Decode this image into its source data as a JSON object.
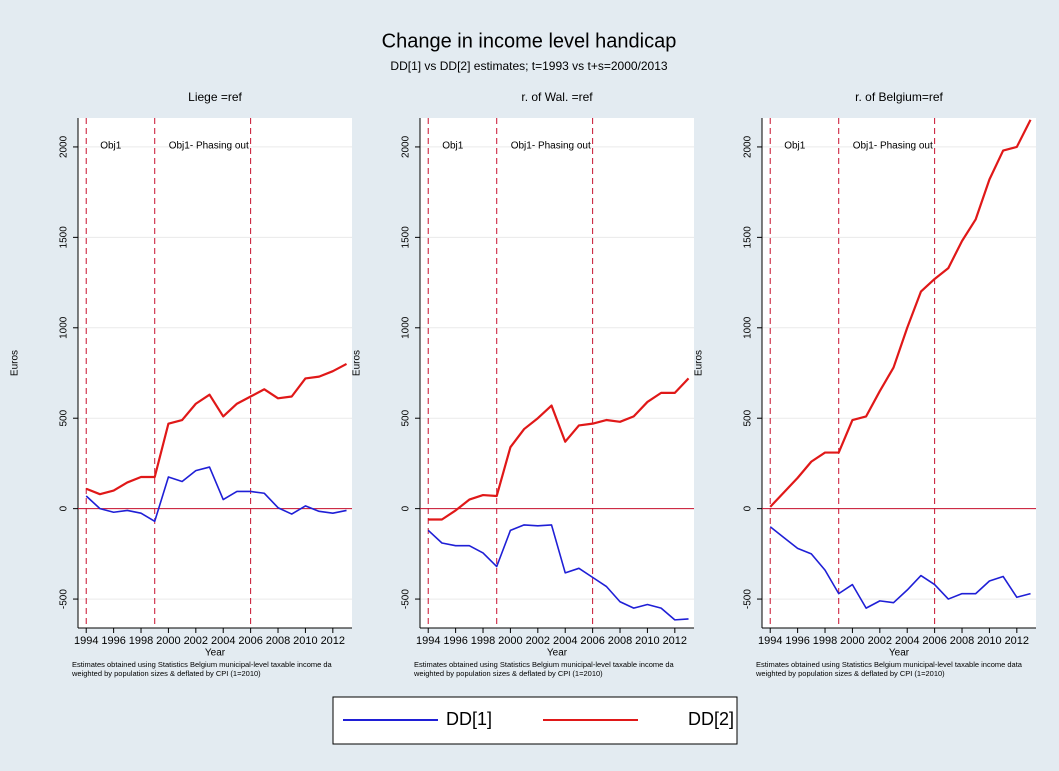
{
  "title": "Change in income level handicap",
  "subtitle": "DD[1] vs DD[2] estimates; t=1993 vs t+s=2000/2013",
  "chart_data": [
    {
      "type": "line",
      "title": "Liege =ref",
      "xlabel": "Year",
      "ylabel": "Euros",
      "notes": [
        "Estimates obtained using Statistics Belgium municipal-level taxable income da",
        "weighted by population sizes & deflated by CPI (1=2010)"
      ],
      "annotations": [
        "Obj1",
        "Obj1- Phasing out"
      ],
      "vlines": [
        1994,
        1999,
        2006
      ],
      "hline": 0,
      "x": [
        1994,
        1995,
        1996,
        1997,
        1998,
        1999,
        2000,
        2001,
        2002,
        2003,
        2004,
        2005,
        2006,
        2007,
        2008,
        2009,
        2010,
        2011,
        2012,
        2013
      ],
      "series": [
        {
          "name": "DD[1]",
          "color": "#1f1fd6",
          "values": [
            70,
            0,
            -20,
            -10,
            -25,
            -70,
            175,
            150,
            210,
            230,
            50,
            95,
            95,
            85,
            5,
            -30,
            15,
            -15,
            -25,
            -10
          ]
        },
        {
          "name": "DD[2]",
          "color": "#e01818",
          "values": [
            110,
            80,
            100,
            145,
            175,
            175,
            470,
            490,
            580,
            630,
            510,
            580,
            620,
            660,
            610,
            620,
            720,
            730,
            760,
            800
          ]
        }
      ],
      "xlim": [
        1993.4,
        2013.4
      ],
      "xticks": [
        1994,
        1996,
        1998,
        2000,
        2002,
        2004,
        2006,
        2008,
        2010,
        2012
      ],
      "ylim": [
        -660,
        2160
      ],
      "yticks": [
        -500,
        0,
        500,
        1000,
        1500,
        2000
      ],
      "grid": true
    },
    {
      "type": "line",
      "title": "r. of Wal. =ref",
      "xlabel": "Year",
      "ylabel": "Euros",
      "notes": [
        "Estimates obtained using Statistics Belgium municipal-level taxable income da",
        "weighted by population sizes & deflated by CPI (1=2010)"
      ],
      "annotations": [
        "Obj1",
        "Obj1- Phasing out"
      ],
      "vlines": [
        1994,
        1999,
        2006
      ],
      "hline": 0,
      "x": [
        1994,
        1995,
        1996,
        1997,
        1998,
        1999,
        2000,
        2001,
        2002,
        2003,
        2004,
        2005,
        2006,
        2007,
        2008,
        2009,
        2010,
        2011,
        2012,
        2013
      ],
      "series": [
        {
          "name": "DD[1]",
          "color": "#1f1fd6",
          "values": [
            -120,
            -190,
            -205,
            -205,
            -245,
            -320,
            -120,
            -90,
            -95,
            -90,
            -355,
            -330,
            -380,
            -430,
            -515,
            -550,
            -530,
            -550,
            -615,
            -610
          ]
        },
        {
          "name": "DD[2]",
          "color": "#e01818",
          "values": [
            -60,
            -60,
            -10,
            50,
            75,
            70,
            340,
            440,
            500,
            570,
            370,
            460,
            470,
            490,
            480,
            510,
            590,
            640,
            640,
            720
          ]
        }
      ],
      "xlim": [
        1993.4,
        2013.4
      ],
      "xticks": [
        1994,
        1996,
        1998,
        2000,
        2002,
        2004,
        2006,
        2008,
        2010,
        2012
      ],
      "ylim": [
        -660,
        2160
      ],
      "yticks": [
        -500,
        0,
        500,
        1000,
        1500,
        2000
      ],
      "grid": true
    },
    {
      "type": "line",
      "title": "r. of Belgium=ref",
      "xlabel": "Year",
      "ylabel": "Euros",
      "notes": [
        "Estimates obtained using Statistics Belgium municipal-level taxable income data",
        "weighted by population sizes & deflated by CPI (1=2010)"
      ],
      "annotations": [
        "Obj1",
        "Obj1- Phasing out"
      ],
      "vlines": [
        1994,
        1999,
        2006
      ],
      "hline": 0,
      "x": [
        1994,
        1995,
        1996,
        1997,
        1998,
        1999,
        2000,
        2001,
        2002,
        2003,
        2004,
        2005,
        2006,
        2007,
        2008,
        2009,
        2010,
        2011,
        2012,
        2013
      ],
      "series": [
        {
          "name": "DD[1]",
          "color": "#1f1fd6",
          "values": [
            -100,
            -160,
            -220,
            -250,
            -340,
            -470,
            -420,
            -550,
            -510,
            -520,
            -450,
            -370,
            -420,
            -500,
            -470,
            -470,
            -400,
            -375,
            -490,
            -470
          ]
        },
        {
          "name": "DD[2]",
          "color": "#e01818",
          "values": [
            10,
            90,
            170,
            260,
            310,
            310,
            490,
            510,
            650,
            780,
            1000,
            1200,
            1270,
            1330,
            1480,
            1600,
            1820,
            1980,
            2000,
            2150
          ]
        }
      ],
      "xlim": [
        1993.4,
        2013.4
      ],
      "xticks": [
        1994,
        1996,
        1998,
        2000,
        2002,
        2004,
        2006,
        2008,
        2010,
        2012
      ],
      "ylim": [
        -660,
        2160
      ],
      "yticks": [
        -500,
        0,
        500,
        1000,
        1500,
        2000
      ],
      "grid": true
    }
  ]
}
